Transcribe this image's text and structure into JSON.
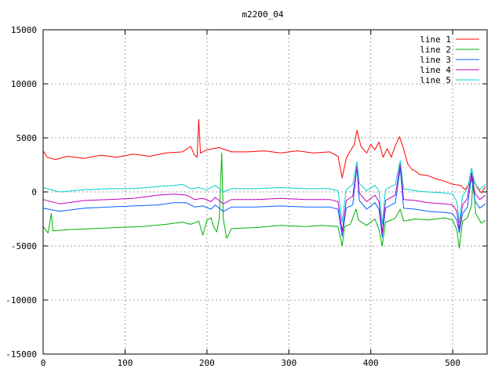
{
  "chart_data": {
    "type": "line",
    "title": "m2200_04",
    "xlabel": "",
    "ylabel": "",
    "xlim": [
      0,
      542
    ],
    "ylim": [
      -15000,
      15000
    ],
    "xticks": [
      0,
      100,
      200,
      300,
      400,
      500
    ],
    "yticks": [
      -15000,
      -10000,
      -5000,
      0,
      5000,
      10000,
      15000
    ],
    "grid": true,
    "legend_position": "top-right",
    "series": [
      {
        "name": "line 1",
        "color": "#ff0000",
        "points": [
          [
            0,
            3800
          ],
          [
            5,
            3200
          ],
          [
            15,
            3000
          ],
          [
            30,
            3300
          ],
          [
            50,
            3100
          ],
          [
            70,
            3400
          ],
          [
            90,
            3200
          ],
          [
            110,
            3500
          ],
          [
            130,
            3300
          ],
          [
            150,
            3600
          ],
          [
            170,
            3700
          ],
          [
            180,
            4200
          ],
          [
            185,
            3400
          ],
          [
            188,
            3200
          ],
          [
            190,
            6700
          ],
          [
            192,
            3600
          ],
          [
            200,
            3900
          ],
          [
            215,
            4100
          ],
          [
            230,
            3700
          ],
          [
            250,
            3700
          ],
          [
            270,
            3800
          ],
          [
            290,
            3600
          ],
          [
            310,
            3800
          ],
          [
            330,
            3600
          ],
          [
            350,
            3700
          ],
          [
            360,
            3300
          ],
          [
            365,
            1300
          ],
          [
            370,
            3100
          ],
          [
            375,
            3800
          ],
          [
            380,
            4400
          ],
          [
            383,
            5700
          ],
          [
            388,
            4200
          ],
          [
            395,
            3600
          ],
          [
            400,
            4400
          ],
          [
            405,
            3900
          ],
          [
            410,
            4600
          ],
          [
            415,
            3200
          ],
          [
            420,
            4000
          ],
          [
            425,
            3200
          ],
          [
            430,
            4300
          ],
          [
            435,
            5100
          ],
          [
            440,
            4000
          ],
          [
            445,
            2600
          ],
          [
            450,
            2100
          ],
          [
            455,
            1900
          ],
          [
            460,
            1600
          ],
          [
            470,
            1500
          ],
          [
            480,
            1200
          ],
          [
            490,
            1000
          ],
          [
            500,
            700
          ],
          [
            510,
            600
          ],
          [
            515,
            200
          ],
          [
            520,
            700
          ],
          [
            525,
            1200
          ],
          [
            530,
            400
          ],
          [
            535,
            -100
          ],
          [
            540,
            500
          ]
        ]
      },
      {
        "name": "line 2",
        "color": "#00b000",
        "points": [
          [
            0,
            -3200
          ],
          [
            6,
            -3800
          ],
          [
            10,
            -2000
          ],
          [
            12,
            -3600
          ],
          [
            30,
            -3500
          ],
          [
            60,
            -3400
          ],
          [
            90,
            -3300
          ],
          [
            120,
            -3200
          ],
          [
            150,
            -3000
          ],
          [
            170,
            -2800
          ],
          [
            180,
            -3000
          ],
          [
            190,
            -2700
          ],
          [
            195,
            -4000
          ],
          [
            200,
            -2600
          ],
          [
            205,
            -2400
          ],
          [
            208,
            -3200
          ],
          [
            212,
            -3700
          ],
          [
            215,
            -2500
          ],
          [
            218,
            3600
          ],
          [
            220,
            -2500
          ],
          [
            224,
            -4300
          ],
          [
            230,
            -3400
          ],
          [
            260,
            -3300
          ],
          [
            290,
            -3100
          ],
          [
            320,
            -3200
          ],
          [
            340,
            -3100
          ],
          [
            360,
            -3200
          ],
          [
            365,
            -5000
          ],
          [
            368,
            -3200
          ],
          [
            375,
            -3000
          ],
          [
            382,
            -1600
          ],
          [
            385,
            -2600
          ],
          [
            395,
            -3100
          ],
          [
            405,
            -2500
          ],
          [
            410,
            -3500
          ],
          [
            414,
            -5000
          ],
          [
            418,
            -2800
          ],
          [
            425,
            -2600
          ],
          [
            430,
            -2400
          ],
          [
            436,
            -1600
          ],
          [
            440,
            -2700
          ],
          [
            455,
            -2500
          ],
          [
            470,
            -2600
          ],
          [
            490,
            -2400
          ],
          [
            500,
            -2600
          ],
          [
            505,
            -3500
          ],
          [
            508,
            -5200
          ],
          [
            512,
            -2700
          ],
          [
            518,
            -2400
          ],
          [
            523,
            -1200
          ],
          [
            525,
            1400
          ],
          [
            528,
            -2000
          ],
          [
            535,
            -2900
          ],
          [
            540,
            -2600
          ]
        ]
      },
      {
        "name": "line 3",
        "color": "#0060ff",
        "points": [
          [
            0,
            -1500
          ],
          [
            20,
            -1800
          ],
          [
            50,
            -1500
          ],
          [
            80,
            -1400
          ],
          [
            110,
            -1300
          ],
          [
            140,
            -1200
          ],
          [
            160,
            -1000
          ],
          [
            175,
            -1000
          ],
          [
            185,
            -1400
          ],
          [
            195,
            -1300
          ],
          [
            205,
            -1600
          ],
          [
            210,
            -1200
          ],
          [
            220,
            -1800
          ],
          [
            230,
            -1400
          ],
          [
            260,
            -1400
          ],
          [
            290,
            -1300
          ],
          [
            320,
            -1400
          ],
          [
            350,
            -1400
          ],
          [
            360,
            -1600
          ],
          [
            365,
            -4100
          ],
          [
            370,
            -1500
          ],
          [
            378,
            -1200
          ],
          [
            383,
            2300
          ],
          [
            386,
            -800
          ],
          [
            395,
            -1600
          ],
          [
            405,
            -1000
          ],
          [
            410,
            -1600
          ],
          [
            414,
            -4200
          ],
          [
            418,
            -1500
          ],
          [
            425,
            -1200
          ],
          [
            430,
            -1000
          ],
          [
            436,
            2200
          ],
          [
            440,
            -1500
          ],
          [
            455,
            -1600
          ],
          [
            470,
            -1800
          ],
          [
            490,
            -1900
          ],
          [
            500,
            -2000
          ],
          [
            505,
            -2600
          ],
          [
            508,
            -3800
          ],
          [
            512,
            -2000
          ],
          [
            518,
            -1400
          ],
          [
            523,
            1500
          ],
          [
            527,
            -800
          ],
          [
            533,
            -1500
          ],
          [
            540,
            -1100
          ]
        ]
      },
      {
        "name": "line 4",
        "color": "#c000c0",
        "points": [
          [
            0,
            -700
          ],
          [
            20,
            -1100
          ],
          [
            50,
            -800
          ],
          [
            80,
            -700
          ],
          [
            110,
            -600
          ],
          [
            140,
            -300
          ],
          [
            160,
            -200
          ],
          [
            175,
            -300
          ],
          [
            185,
            -700
          ],
          [
            195,
            -600
          ],
          [
            205,
            -900
          ],
          [
            210,
            -500
          ],
          [
            220,
            -1100
          ],
          [
            230,
            -700
          ],
          [
            260,
            -700
          ],
          [
            290,
            -600
          ],
          [
            320,
            -700
          ],
          [
            350,
            -700
          ],
          [
            360,
            -900
          ],
          [
            365,
            -3700
          ],
          [
            370,
            -800
          ],
          [
            378,
            -400
          ],
          [
            383,
            2400
          ],
          [
            386,
            -100
          ],
          [
            395,
            -900
          ],
          [
            405,
            -300
          ],
          [
            410,
            -900
          ],
          [
            414,
            -3800
          ],
          [
            418,
            -800
          ],
          [
            425,
            -500
          ],
          [
            430,
            -300
          ],
          [
            436,
            2600
          ],
          [
            440,
            -700
          ],
          [
            455,
            -800
          ],
          [
            470,
            -1000
          ],
          [
            490,
            -1100
          ],
          [
            500,
            -1200
          ],
          [
            505,
            -1800
          ],
          [
            508,
            -3400
          ],
          [
            512,
            -1200
          ],
          [
            518,
            -600
          ],
          [
            523,
            1800
          ],
          [
            527,
            -100
          ],
          [
            533,
            -700
          ],
          [
            540,
            -300
          ]
        ]
      },
      {
        "name": "line 5",
        "color": "#00d0d0",
        "points": [
          [
            0,
            400
          ],
          [
            20,
            0
          ],
          [
            50,
            200
          ],
          [
            80,
            300
          ],
          [
            110,
            300
          ],
          [
            140,
            500
          ],
          [
            160,
            600
          ],
          [
            170,
            700
          ],
          [
            180,
            300
          ],
          [
            190,
            400
          ],
          [
            200,
            200
          ],
          [
            210,
            600
          ],
          [
            220,
            0
          ],
          [
            230,
            300
          ],
          [
            260,
            300
          ],
          [
            290,
            400
          ],
          [
            320,
            300
          ],
          [
            350,
            300
          ],
          [
            360,
            100
          ],
          [
            365,
            -2800
          ],
          [
            370,
            200
          ],
          [
            378,
            700
          ],
          [
            383,
            2800
          ],
          [
            386,
            800
          ],
          [
            395,
            100
          ],
          [
            405,
            600
          ],
          [
            410,
            100
          ],
          [
            414,
            -3000
          ],
          [
            418,
            200
          ],
          [
            425,
            500
          ],
          [
            430,
            700
          ],
          [
            436,
            2900
          ],
          [
            440,
            300
          ],
          [
            455,
            100
          ],
          [
            470,
            0
          ],
          [
            490,
            -100
          ],
          [
            500,
            -200
          ],
          [
            505,
            -900
          ],
          [
            508,
            -2800
          ],
          [
            512,
            -400
          ],
          [
            518,
            300
          ],
          [
            523,
            2200
          ],
          [
            527,
            800
          ],
          [
            533,
            200
          ],
          [
            540,
            700
          ]
        ]
      }
    ]
  }
}
